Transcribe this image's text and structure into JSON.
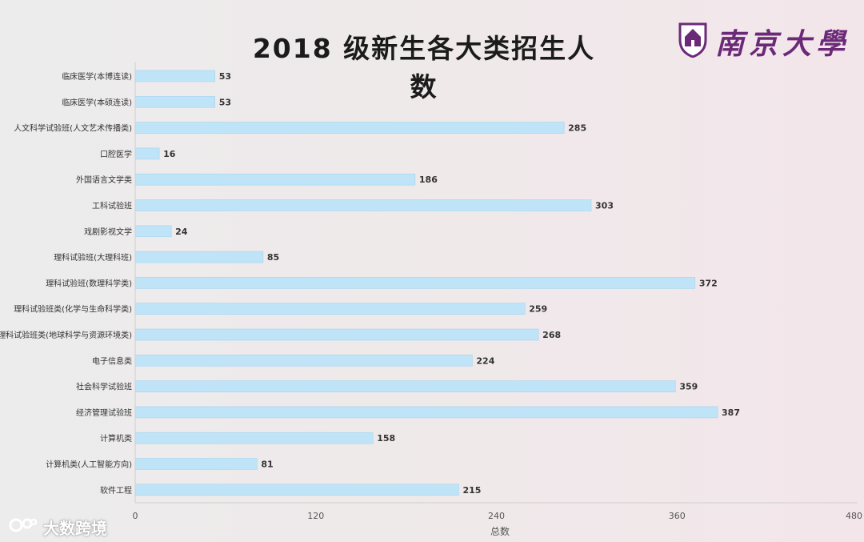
{
  "title": "2018 级新生各大类招生人数",
  "logo": {
    "text": "南京大學"
  },
  "watermark": {
    "text": "大数跨境"
  },
  "colors": {
    "bar": "#bfe3f7",
    "bar_edge": "#a8d4ef",
    "label": "#333333",
    "axis": "#555555"
  },
  "chart_data": {
    "type": "bar",
    "orientation": "horizontal",
    "title": "2018 级新生各大类招生人数",
    "xlabel": "总数",
    "ylabel": "",
    "xlim": [
      0,
      480
    ],
    "xticks": [
      0,
      120,
      240,
      360,
      480
    ],
    "grid": false,
    "categories": [
      "临床医学(本博连读)",
      "临床医学(本硕连读)",
      "人文科学试验班(人文艺术传播类)",
      "口腔医学",
      "外国语言文学类",
      "工科试验班",
      "戏剧影视文学",
      "理科试验班(大理科班)",
      "理科试验班(数理科学类)",
      "理科试验班类(化学与生命科学类)",
      "理科试验班类(地球科学与资源环境类)",
      "电子信息类",
      "社会科学试验班",
      "经济管理试验班",
      "计算机类",
      "计算机类(人工智能方向)",
      "软件工程"
    ],
    "values": [
      53,
      53,
      285,
      16,
      186,
      303,
      24,
      85,
      372,
      259,
      268,
      224,
      359,
      387,
      158,
      81,
      215
    ]
  }
}
